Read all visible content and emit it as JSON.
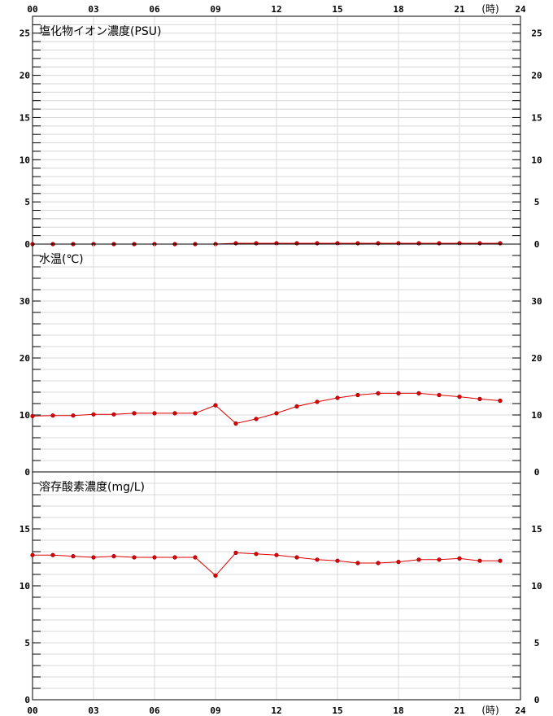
{
  "hours_unit": "(時)",
  "x_ticks": [
    "00",
    "03",
    "06",
    "09",
    "12",
    "15",
    "18",
    "21",
    "24"
  ],
  "colors": {
    "series": "#e00000",
    "grid": "#d8d8d8",
    "frame": "#000000"
  },
  "chart_data": [
    {
      "type": "line",
      "title": "塩化物イオン濃度(PSU)",
      "xlim": [
        0,
        24
      ],
      "ylim": [
        0,
        27
      ],
      "yticks": [
        0,
        5,
        10,
        15,
        20,
        25
      ],
      "x": [
        0,
        1,
        2,
        3,
        4,
        5,
        6,
        7,
        8,
        9,
        10,
        11,
        12,
        13,
        14,
        15,
        16,
        17,
        18,
        19,
        20,
        21,
        22,
        23
      ],
      "values": [
        0,
        0,
        0,
        0,
        0,
        0,
        0,
        0,
        0,
        0,
        0.1,
        0.1,
        0.1,
        0.1,
        0.1,
        0.1,
        0.1,
        0.1,
        0.1,
        0.1,
        0.1,
        0.1,
        0.1,
        0.1
      ]
    },
    {
      "type": "line",
      "title": "水温(℃)",
      "xlim": [
        0,
        24
      ],
      "ylim": [
        0,
        40
      ],
      "yticks": [
        0,
        10,
        20,
        30
      ],
      "x": [
        0,
        1,
        2,
        3,
        4,
        5,
        6,
        7,
        8,
        9,
        10,
        11,
        12,
        13,
        14,
        15,
        16,
        17,
        18,
        19,
        20,
        21,
        22,
        23
      ],
      "values": [
        9.8,
        9.9,
        9.9,
        10.1,
        10.1,
        10.3,
        10.3,
        10.3,
        10.3,
        11.7,
        8.5,
        9.3,
        10.3,
        11.5,
        12.3,
        13.0,
        13.5,
        13.8,
        13.8,
        13.8,
        13.5,
        13.2,
        12.8,
        12.5
      ]
    },
    {
      "type": "line",
      "title": "溶存酸素濃度(mg/L)",
      "xlim": [
        0,
        24
      ],
      "ylim": [
        0,
        20
      ],
      "yticks": [
        0,
        5,
        10,
        15
      ],
      "x": [
        0,
        1,
        2,
        3,
        4,
        5,
        6,
        7,
        8,
        9,
        10,
        11,
        12,
        13,
        14,
        15,
        16,
        17,
        18,
        19,
        20,
        21,
        22,
        23
      ],
      "values": [
        12.7,
        12.7,
        12.6,
        12.5,
        12.6,
        12.5,
        12.5,
        12.5,
        12.5,
        10.9,
        12.9,
        12.8,
        12.7,
        12.5,
        12.3,
        12.2,
        12.0,
        12.0,
        12.1,
        12.3,
        12.3,
        12.4,
        12.2,
        12.2
      ]
    }
  ]
}
